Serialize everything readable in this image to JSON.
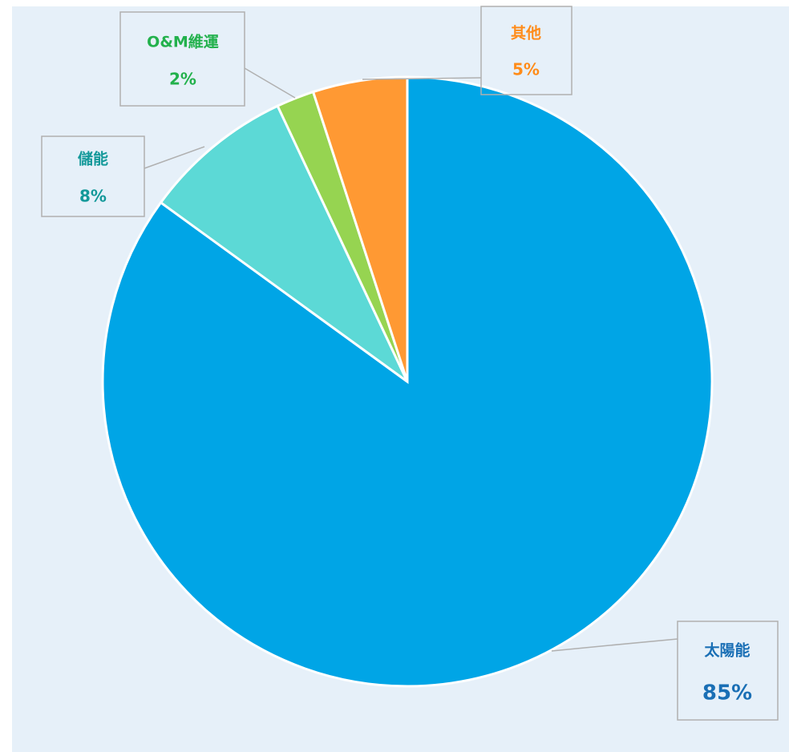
{
  "chart_data": {
    "type": "pie",
    "categories": [
      "太陽能",
      "儲能",
      "O&M維運",
      "其他"
    ],
    "values": [
      85,
      8,
      2,
      5
    ],
    "value_labels": [
      "85%",
      "8%",
      "2%",
      "5%"
    ],
    "colors": [
      "#00a5e6",
      "#5cd9d6",
      "#96d451",
      "#ff9933"
    ],
    "label_colors": [
      "#1a6fb5",
      "#14999a",
      "#22b14c",
      "#ff8c1a"
    ]
  }
}
